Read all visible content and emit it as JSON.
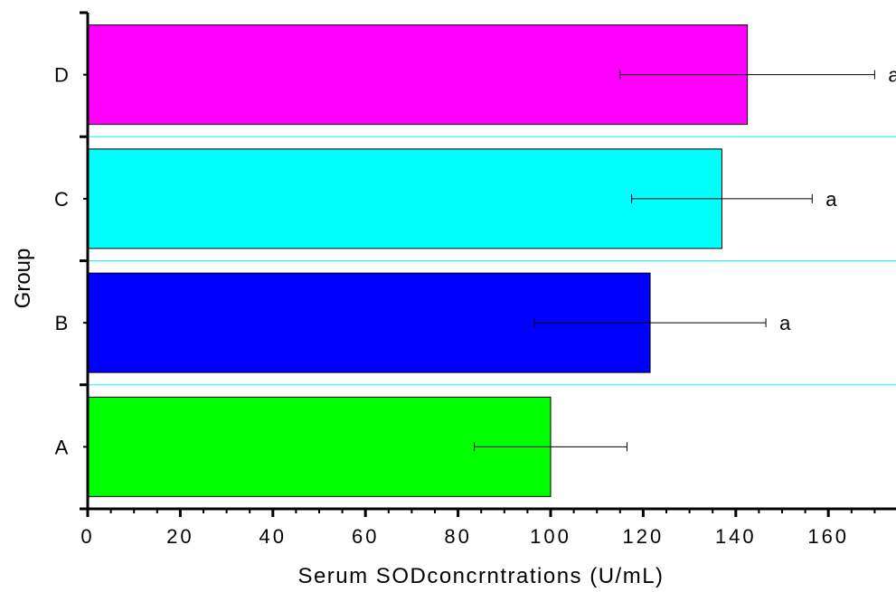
{
  "chart_data": {
    "type": "bar",
    "orientation": "horizontal",
    "categories": [
      "A",
      "B",
      "C",
      "D"
    ],
    "values": [
      100,
      121.5,
      137,
      142.5
    ],
    "errors": [
      16.5,
      25,
      19.5,
      27.5
    ],
    "significance": [
      "",
      "a",
      "a",
      "a"
    ],
    "colors": [
      "#00ff00",
      "#0000ff",
      "#00ffff",
      "#ff00ff"
    ],
    "xlabel": "Serum SODconcrntrations (U/mL)",
    "ylabel": "Group",
    "xlim": [
      0,
      176
    ],
    "xticks": [
      0,
      20,
      40,
      60,
      80,
      100,
      120,
      140,
      160
    ],
    "xtick_labels": [
      "0",
      "20",
      "40",
      "60",
      "80",
      "100",
      "120",
      "140",
      "160"
    ],
    "gridlines": "horizontal, cyan, between bars",
    "legend": "none"
  }
}
